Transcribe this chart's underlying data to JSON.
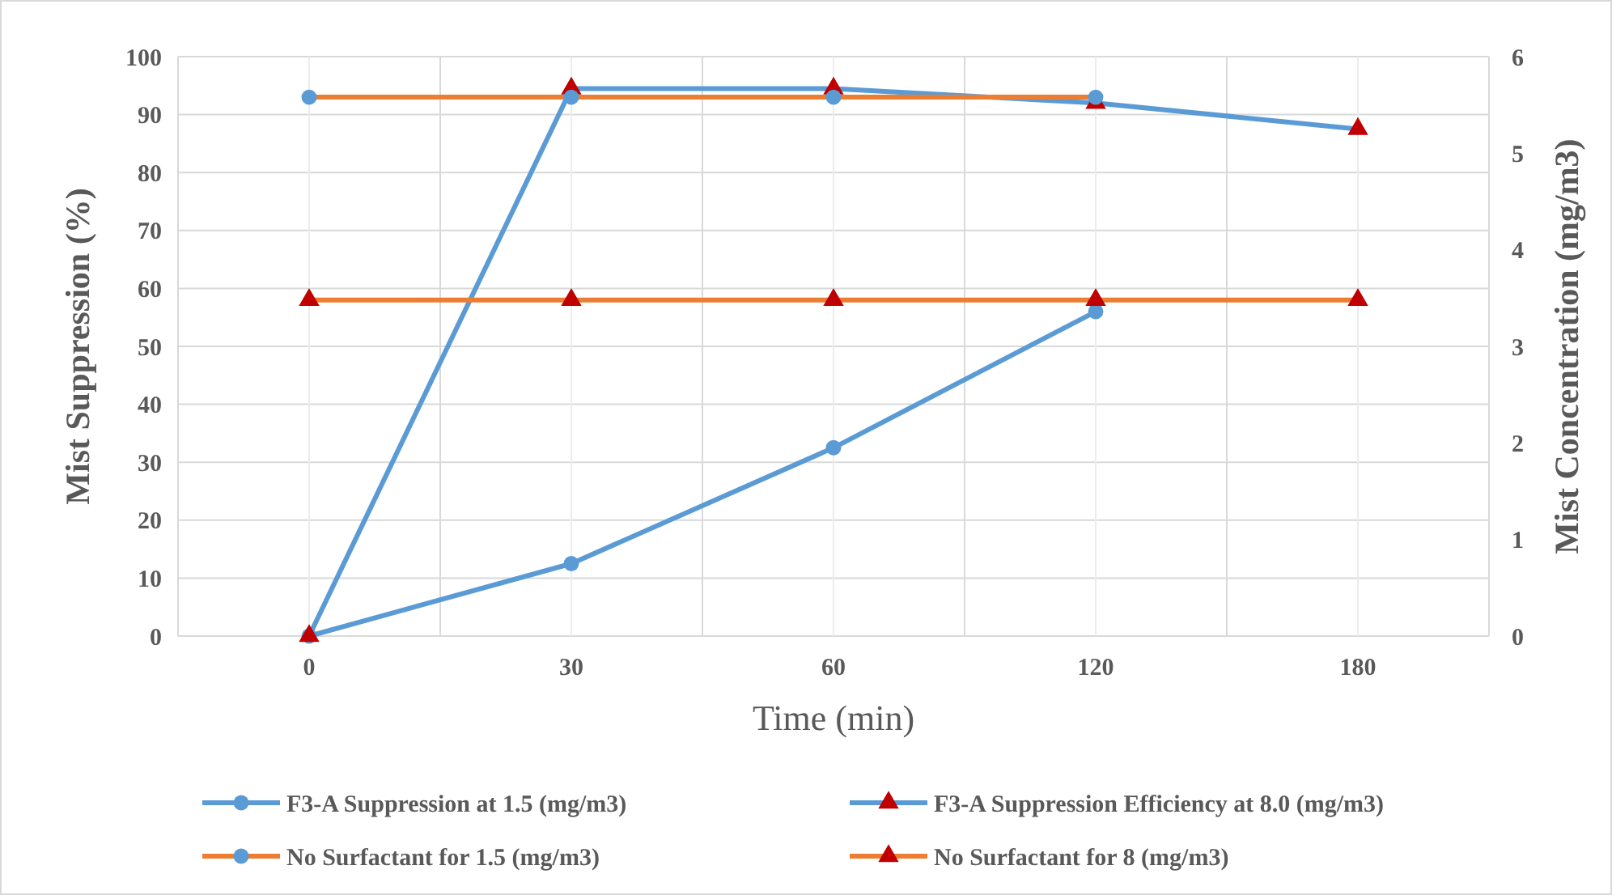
{
  "chart_data": {
    "type": "line",
    "xlabel": "Time (min)",
    "ylabel": "Mist Suppression (%)",
    "y2label": "Mist Concentration  (mg/m3)",
    "categories": [
      "0",
      "30",
      "60",
      "120",
      "180"
    ],
    "ylim": [
      0,
      100
    ],
    "yticks": [
      0,
      10,
      20,
      30,
      40,
      50,
      60,
      70,
      80,
      90,
      100
    ],
    "y2lim": [
      0,
      6
    ],
    "y2ticks": [
      0,
      1,
      2,
      3,
      4,
      5,
      6
    ],
    "grid": true,
    "legend": "bottom",
    "series": [
      {
        "name": "F3-A Suppression at 1.5 (mg/m3)",
        "color": "#5b9bd5",
        "marker": "circle",
        "colors": [
          "#5b9bd5",
          "#5b9bd5",
          "#5b9bd5",
          "#5b9bd5",
          null
        ],
        "values": [
          0,
          12.5,
          32.5,
          56,
          null
        ]
      },
      {
        "name": "F3-A Suppression Efficiency at 8.0 (mg/m3)",
        "color": "#5b9bd5",
        "marker": "triangle",
        "colors": [
          "#c00000",
          "#c00000",
          "#c00000",
          "#c00000",
          "#c00000"
        ],
        "values": [
          0,
          94.5,
          94.5,
          92,
          87.5
        ]
      },
      {
        "name": "No Surfactant for 1.5 (mg/m3)",
        "color": "#ed7d31",
        "marker": "circle",
        "colors": [
          "#5b9bd5",
          "#5b9bd5",
          "#5b9bd5",
          "#5b9bd5",
          null
        ],
        "values": [
          93,
          93,
          93,
          93,
          null
        ]
      },
      {
        "name": "No Surfactant for 8 (mg/m3)",
        "color": "#ed7d31",
        "marker": "triangle",
        "colors": [
          "#c00000",
          "#c00000",
          "#c00000",
          "#c00000",
          "#c00000"
        ],
        "values": [
          58,
          58,
          58,
          58,
          58
        ]
      }
    ]
  }
}
